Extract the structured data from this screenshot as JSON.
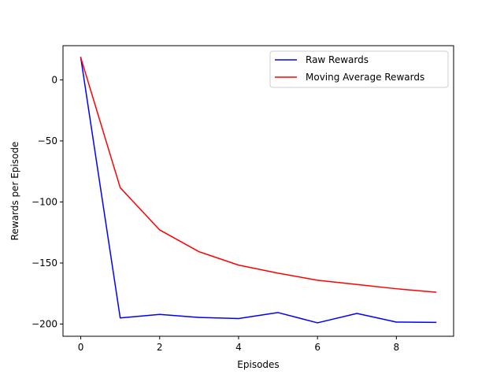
{
  "chart_data": {
    "type": "line",
    "title": "",
    "xlabel": "Episodes",
    "ylabel": "Rewards per Episode",
    "xlim": [
      -0.45,
      9.45
    ],
    "ylim": [
      -210,
      28
    ],
    "xticks": [
      0,
      2,
      4,
      6,
      8
    ],
    "yticks": [
      0,
      -50,
      -100,
      -150,
      -200
    ],
    "ytick_labels": [
      "0",
      "−50",
      "−100",
      "−150",
      "−200"
    ],
    "x": [
      0,
      1,
      2,
      3,
      4,
      5,
      6,
      7,
      8,
      9
    ],
    "series": [
      {
        "name": "Raw Rewards",
        "color": "#0000ff",
        "values": [
          18.3,
          -195.0,
          -192.1,
          -194.6,
          -195.5,
          -190.6,
          -199.0,
          -191.3,
          -198.4,
          -198.6
        ]
      },
      {
        "name": "Moving Average Rewards",
        "color": "#ff0000",
        "values": [
          18.3,
          -88.3,
          -122.9,
          -140.8,
          -151.7,
          -158.3,
          -164.1,
          -167.6,
          -171.1,
          -173.9
        ]
      }
    ],
    "grid": false,
    "legend": "top-right"
  }
}
